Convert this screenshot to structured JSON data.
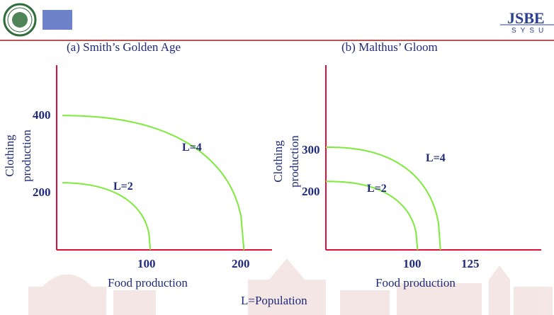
{
  "header": {
    "logo_text": "JSBE",
    "logo_subtext": "SYSU",
    "university_seal_text": "中山大学 SUN YAT-SEN UNIVERSITY"
  },
  "colors": {
    "axis": "#e0103a",
    "curve": "#7dea3c",
    "text": "#1f2a7a",
    "header_rule": "#a31818",
    "square": "#6d82c8"
  },
  "chart_data": [
    {
      "type": "line",
      "title": "(a) Smith’s Golden Age",
      "xlabel": "Food  production",
      "ylabel": "Clothing production",
      "xlim": [
        0,
        230
      ],
      "ylim": [
        0,
        550
      ],
      "xticks": [
        100,
        200
      ],
      "yticks": [
        200,
        400
      ],
      "series": [
        {
          "name": "L=2",
          "curve": "ppf",
          "x_intercept": 100,
          "y_intercept": 200
        },
        {
          "name": "L=4",
          "curve": "ppf",
          "x_intercept": 200,
          "y_intercept": 400
        }
      ]
    },
    {
      "type": "line",
      "title": "(b) Malthus’ Gloom",
      "xlabel": "Food  production",
      "ylabel": "Clothing production",
      "xlim": [
        0,
        235
      ],
      "ylim": [
        0,
        540
      ],
      "xticks": [
        100,
        125
      ],
      "yticks": [
        200,
        300
      ],
      "series": [
        {
          "name": "L=2",
          "curve": "ppf",
          "x_intercept": 100,
          "y_intercept": 200
        },
        {
          "name": "L=4",
          "curve": "ppf",
          "x_intercept": 125,
          "y_intercept": 300
        }
      ]
    }
  ],
  "footer": {
    "note": "L=Population"
  }
}
